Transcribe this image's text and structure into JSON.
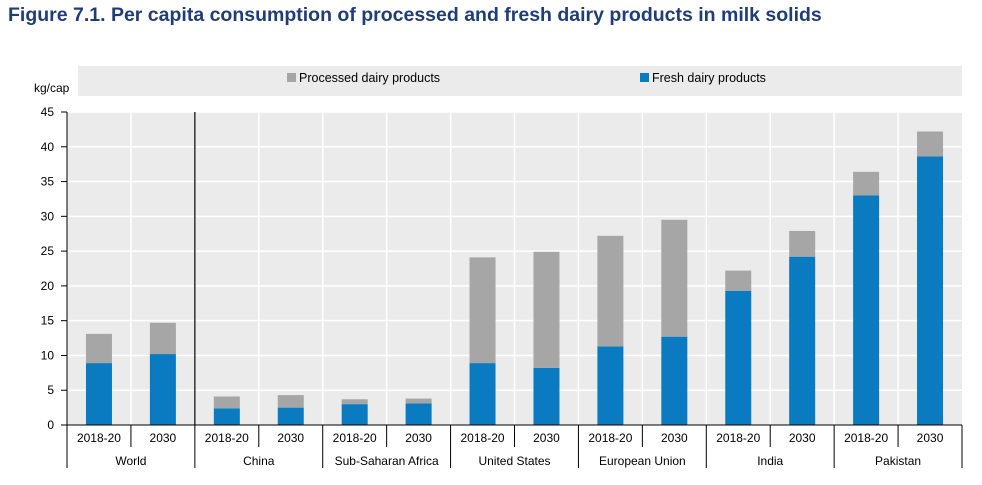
{
  "figure": {
    "title": "Figure 7.1. Per capita consumption of processed and fresh dairy products in milk solids"
  },
  "chart_data": {
    "type": "bar",
    "stacked": true,
    "ylabel": "kg/cap",
    "ylim": [
      0,
      45
    ],
    "yticks": [
      0,
      5,
      10,
      15,
      20,
      25,
      30,
      35,
      40,
      45
    ],
    "grid": true,
    "legend_position": "top",
    "groups": [
      "World",
      "China",
      "Sub-Saharan Africa",
      "United States",
      "European Union",
      "India",
      "Pakistan"
    ],
    "periods": [
      "2018-20",
      "2030"
    ],
    "categories": [
      "World 2018-20",
      "World 2030",
      "China 2018-20",
      "China 2030",
      "Sub-Saharan Africa 2018-20",
      "Sub-Saharan Africa 2030",
      "United States 2018-20",
      "United States 2030",
      "European Union 2018-20",
      "European Union 2030",
      "India 2018-20",
      "India 2030",
      "Pakistan 2018-20",
      "Pakistan 2030"
    ],
    "series": [
      {
        "name": "Fresh dairy products",
        "color": "#0b7bc1",
        "values": [
          8.9,
          10.2,
          2.4,
          2.5,
          3.0,
          3.1,
          8.9,
          8.2,
          11.3,
          12.7,
          19.3,
          24.2,
          33.0,
          38.6
        ]
      },
      {
        "name": "Processed dairy products",
        "color": "#a6a6a6",
        "values": [
          4.2,
          4.5,
          1.7,
          1.8,
          0.7,
          0.7,
          15.2,
          16.7,
          15.9,
          16.8,
          2.9,
          3.7,
          3.4,
          3.6
        ]
      }
    ]
  }
}
